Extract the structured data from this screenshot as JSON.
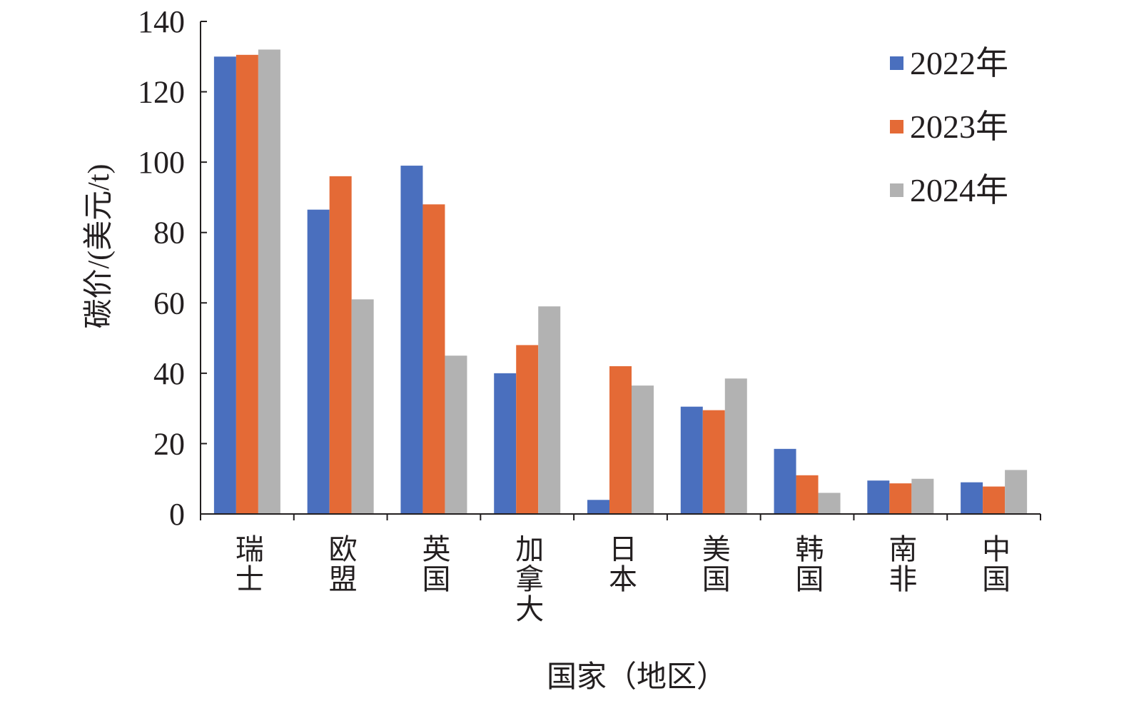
{
  "chart_data": {
    "type": "bar",
    "title": "",
    "xlabel": "国家（地区）",
    "ylabel": "碳价/(美元/t)",
    "ylim": [
      0,
      140
    ],
    "yticks": [
      0,
      20,
      40,
      60,
      80,
      100,
      120,
      140
    ],
    "grid": false,
    "legend_position": "top-right",
    "categories": [
      "瑞士",
      "欧盟",
      "英国",
      "加拿大",
      "日本",
      "美国",
      "韩国",
      "南非",
      "中国"
    ],
    "series": [
      {
        "name": "2022年",
        "color": "#4a6fbe",
        "values": [
          130,
          86.5,
          99,
          40,
          4,
          30.5,
          18.5,
          9.5,
          9
        ]
      },
      {
        "name": "2023年",
        "color": "#e46a36",
        "values": [
          130.5,
          96,
          88,
          48,
          42,
          29.5,
          11,
          8.7,
          7.8
        ]
      },
      {
        "name": "2024年",
        "color": "#b2b2b2",
        "values": [
          132,
          61,
          45,
          59,
          36.5,
          38.5,
          6,
          10,
          12.5
        ]
      }
    ]
  }
}
